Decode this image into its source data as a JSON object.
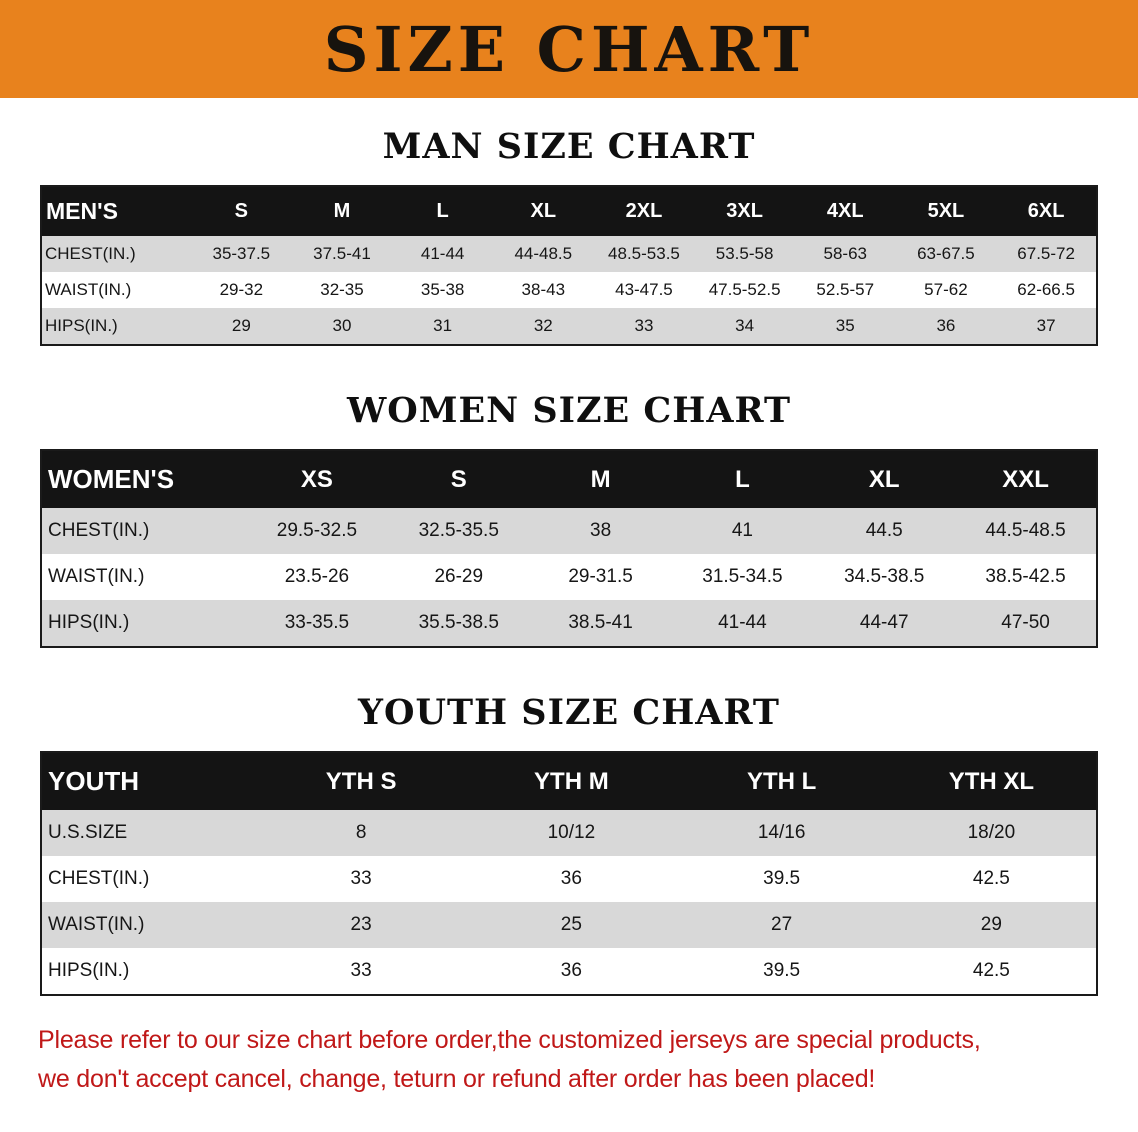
{
  "banner": {
    "title": "SIZE CHART"
  },
  "colors": {
    "banner-orange": "#E8821D",
    "header-black": "#141414",
    "stripe-gray": "#d8d8d8",
    "disclaimer-red": "#c01818"
  },
  "sections": [
    {
      "id": "men",
      "heading": "MAN SIZE CHART",
      "table": {
        "header": [
          "MEN'S",
          "S",
          "M",
          "L",
          "XL",
          "2XL",
          "3XL",
          "4XL",
          "5XL",
          "6XL"
        ],
        "rows": [
          [
            "CHEST(IN.)",
            "35-37.5",
            "37.5-41",
            "41-44",
            "44-48.5",
            "48.5-53.5",
            "53.5-58",
            "58-63",
            "63-67.5",
            "67.5-72"
          ],
          [
            "WAIST(IN.)",
            "29-32",
            "32-35",
            "35-38",
            "38-43",
            "43-47.5",
            "47.5-52.5",
            "52.5-57",
            "57-62",
            "62-66.5"
          ],
          [
            "HIPS(IN.)",
            "29",
            "30",
            "31",
            "32",
            "33",
            "34",
            "35",
            "36",
            "37"
          ]
        ]
      }
    },
    {
      "id": "women",
      "heading": "WOMEN SIZE CHART",
      "table": {
        "header": [
          "WOMEN'S",
          "XS",
          "S",
          "M",
          "L",
          "XL",
          "XXL"
        ],
        "rows": [
          [
            "CHEST(IN.)",
            "29.5-32.5",
            "32.5-35.5",
            "38",
            "41",
            "44.5",
            "44.5-48.5"
          ],
          [
            "WAIST(IN.)",
            "23.5-26",
            "26-29",
            "29-31.5",
            "31.5-34.5",
            "34.5-38.5",
            "38.5-42.5"
          ],
          [
            "HIPS(IN.)",
            "33-35.5",
            "35.5-38.5",
            "38.5-41",
            "41-44",
            "44-47",
            "47-50"
          ]
        ]
      }
    },
    {
      "id": "youth",
      "heading": "YOUTH SIZE CHART",
      "table": {
        "header": [
          "YOUTH",
          "YTH S",
          "YTH M",
          "YTH L",
          "YTH XL"
        ],
        "rows": [
          [
            "U.S.SIZE",
            "8",
            "10/12",
            "14/16",
            "18/20"
          ],
          [
            "CHEST(IN.)",
            "33",
            "36",
            "39.5",
            "42.5"
          ],
          [
            "WAIST(IN.)",
            "23",
            "25",
            "27",
            "29"
          ],
          [
            "HIPS(IN.)",
            "33",
            "36",
            "39.5",
            "42.5"
          ]
        ]
      }
    }
  ],
  "disclaimer": {
    "line1": "Please refer to our size chart before order,the customized jerseys are special products,",
    "line2": "we don't accept cancel, change, teturn or refund after order has been placed!"
  }
}
